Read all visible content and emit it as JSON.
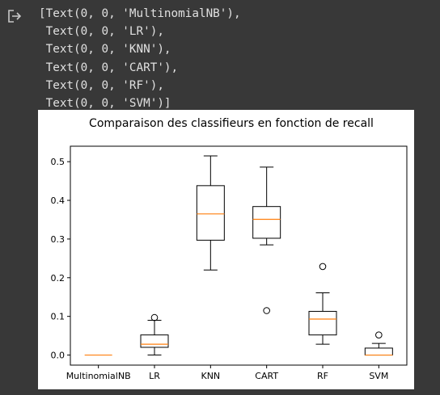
{
  "cell": {
    "output_icon": "output-arrow-icon",
    "output_lines": [
      "[Text(0, 0, 'MultinomialNB'),",
      " Text(0, 0, 'LR'),",
      " Text(0, 0, 'KNN'),",
      " Text(0, 0, 'CART'),",
      " Text(0, 0, 'RF'),",
      " Text(0, 0, 'SVM')]"
    ]
  },
  "chart_data": {
    "type": "boxplot",
    "title": "Comparaison des classifieurs en fonction de recall",
    "xlabel": "",
    "ylabel": "",
    "categories": [
      "MultinomialNB",
      "LR",
      "KNN",
      "CART",
      "RF",
      "SVM"
    ],
    "boxes": [
      {
        "name": "MultinomialNB",
        "whislo": 0.0,
        "q1": 0.0,
        "med": 0.0,
        "q3": 0.0,
        "whishi": 0.0,
        "fliers": []
      },
      {
        "name": "LR",
        "whislo": 0.0,
        "q1": 0.02,
        "med": 0.028,
        "q3": 0.052,
        "whishi": 0.09,
        "fliers": [
          0.097
        ]
      },
      {
        "name": "KNN",
        "whislo": 0.22,
        "q1": 0.297,
        "med": 0.365,
        "q3": 0.438,
        "whishi": 0.515,
        "fliers": []
      },
      {
        "name": "CART",
        "whislo": 0.285,
        "q1": 0.302,
        "med": 0.351,
        "q3": 0.384,
        "whishi": 0.486,
        "fliers": [
          0.115
        ]
      },
      {
        "name": "RF",
        "whislo": 0.028,
        "q1": 0.052,
        "med": 0.093,
        "q3": 0.113,
        "whishi": 0.161,
        "fliers": [
          0.229
        ]
      },
      {
        "name": "SVM",
        "whislo": 0.0,
        "q1": 0.0,
        "med": 0.0,
        "q3": 0.018,
        "whishi": 0.03,
        "fliers": [
          0.052
        ]
      }
    ],
    "yticks": [
      0.0,
      0.1,
      0.2,
      0.3,
      0.4,
      0.5
    ],
    "ytick_labels": [
      "0.0",
      "0.1",
      "0.2",
      "0.3",
      "0.4",
      "0.5"
    ],
    "ylim": [
      -0.026,
      0.54
    ],
    "grid": false,
    "colors": {
      "box": "#000000",
      "median": "#ff7f0e",
      "background": "#ffffff"
    }
  }
}
